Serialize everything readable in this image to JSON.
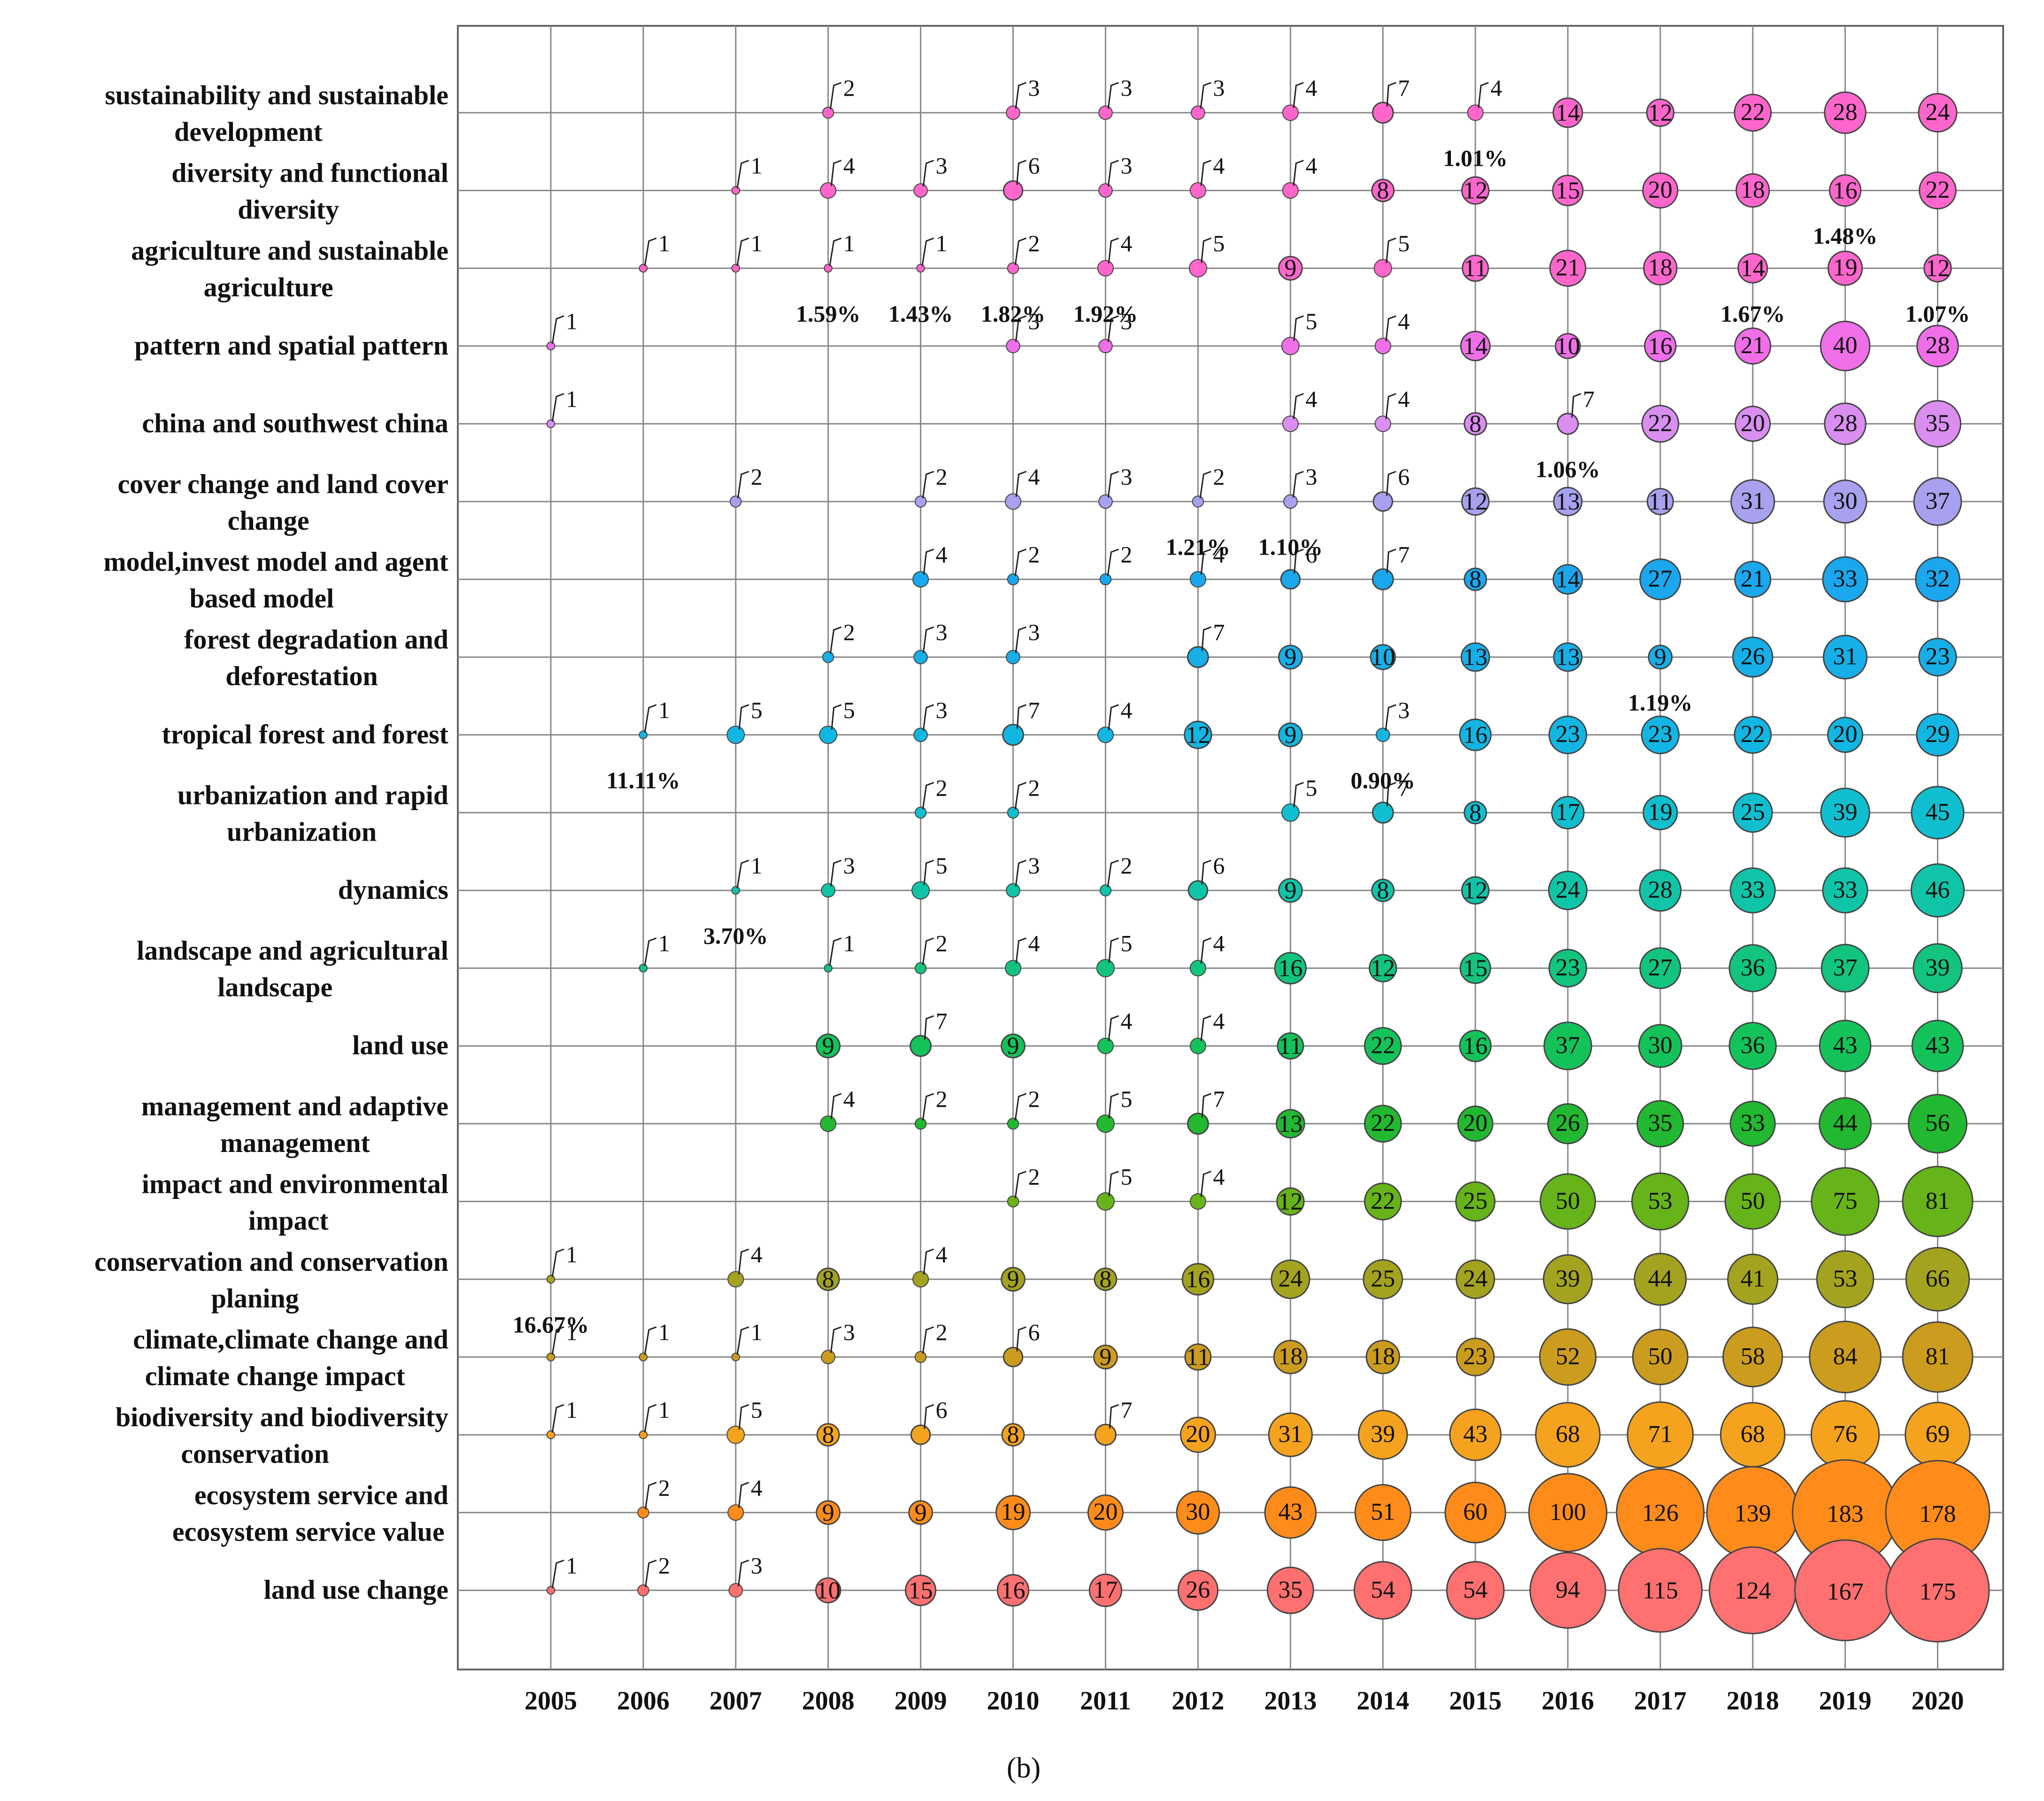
{
  "chart_data": {
    "type": "scatter",
    "subtype": "bubble-matrix",
    "caption": "(b)",
    "years": [
      "2005",
      "2006",
      "2007",
      "2008",
      "2009",
      "2010",
      "2011",
      "2012",
      "2013",
      "2014",
      "2015",
      "2016",
      "2017",
      "2018",
      "2019",
      "2020"
    ],
    "series": [
      {
        "name": "sustainability and sustainable development",
        "color": "#ff66cc",
        "values": [
          null,
          null,
          null,
          2,
          null,
          3,
          3,
          3,
          4,
          7,
          4,
          14,
          12,
          22,
          28,
          24
        ]
      },
      {
        "name": "diversity and functional diversity",
        "color": "#ff66cc",
        "values": [
          null,
          null,
          1,
          4,
          3,
          6,
          3,
          4,
          4,
          8,
          12,
          15,
          20,
          18,
          16,
          22
        ]
      },
      {
        "name": "agriculture and sustainable agriculture",
        "color": "#ff66cc",
        "values": [
          null,
          1,
          1,
          1,
          1,
          2,
          4,
          5,
          9,
          5,
          11,
          21,
          18,
          14,
          19,
          12
        ]
      },
      {
        "name": "pattern and spatial pattern",
        "color": "#f06ee8",
        "values": [
          1,
          null,
          null,
          null,
          null,
          3,
          3,
          null,
          5,
          4,
          14,
          10,
          16,
          21,
          40,
          28
        ]
      },
      {
        "name": "china and southwest china",
        "color": "#d98ef0",
        "values": [
          1,
          null,
          null,
          null,
          null,
          null,
          null,
          null,
          4,
          4,
          8,
          7,
          22,
          20,
          28,
          35
        ]
      },
      {
        "name": "cover change and land cover change",
        "color": "#a7a1f0",
        "values": [
          null,
          null,
          2,
          null,
          2,
          4,
          3,
          2,
          3,
          6,
          12,
          13,
          11,
          31,
          30,
          37
        ]
      },
      {
        "name": "model,invest model and agent based model",
        "color": "#1aa7ee",
        "values": [
          null,
          null,
          null,
          null,
          4,
          2,
          2,
          4,
          6,
          7,
          8,
          14,
          27,
          21,
          33,
          32
        ]
      },
      {
        "name": "forest degradation and deforestation",
        "color": "#18aee8",
        "values": [
          null,
          null,
          null,
          2,
          3,
          3,
          null,
          7,
          9,
          10,
          13,
          13,
          9,
          26,
          31,
          23
        ]
      },
      {
        "name": "tropical forest and forest",
        "color": "#12b6e2",
        "values": [
          null,
          1,
          5,
          5,
          3,
          7,
          4,
          12,
          9,
          3,
          16,
          23,
          23,
          22,
          20,
          29
        ]
      },
      {
        "name": "urbanization and rapid urbanization",
        "color": "#10bfcf",
        "values": [
          null,
          null,
          null,
          null,
          2,
          2,
          null,
          null,
          5,
          7,
          8,
          17,
          19,
          25,
          39,
          45
        ]
      },
      {
        "name": "dynamics",
        "color": "#10c4a8",
        "values": [
          null,
          null,
          1,
          3,
          5,
          3,
          2,
          6,
          9,
          8,
          12,
          24,
          28,
          33,
          33,
          46
        ]
      },
      {
        "name": "landscape and agricultural landscape",
        "color": "#12c47e",
        "values": [
          null,
          1,
          null,
          1,
          2,
          4,
          5,
          4,
          16,
          12,
          15,
          23,
          27,
          36,
          37,
          39
        ]
      },
      {
        "name": "land use",
        "color": "#14c25a",
        "values": [
          null,
          null,
          null,
          9,
          7,
          9,
          4,
          4,
          11,
          22,
          16,
          37,
          30,
          36,
          43,
          43
        ]
      },
      {
        "name": "management and adaptive management",
        "color": "#22b832",
        "values": [
          null,
          null,
          null,
          4,
          2,
          2,
          5,
          7,
          13,
          22,
          20,
          26,
          35,
          33,
          44,
          56
        ]
      },
      {
        "name": "impact and environmental impact",
        "color": "#66b31a",
        "values": [
          null,
          null,
          null,
          null,
          null,
          2,
          5,
          4,
          12,
          22,
          25,
          50,
          53,
          50,
          75,
          81
        ]
      },
      {
        "name": "conservation and conservation planing",
        "color": "#a3a320",
        "values": [
          1,
          null,
          4,
          8,
          4,
          9,
          8,
          16,
          24,
          25,
          24,
          39,
          44,
          41,
          53,
          66
        ]
      },
      {
        "name": "climate,climate change and climate change impact",
        "color": "#cc9c1e",
        "values": [
          1,
          1,
          1,
          3,
          2,
          6,
          9,
          11,
          18,
          18,
          23,
          52,
          50,
          58,
          84,
          81
        ]
      },
      {
        "name": "biodiversity and biodiversity conservation",
        "color": "#f5a31e",
        "values": [
          1,
          1,
          5,
          8,
          6,
          8,
          7,
          20,
          31,
          39,
          43,
          68,
          71,
          68,
          76,
          69
        ]
      },
      {
        "name": "ecosystem service and ecosystem service value",
        "color": "#ff8c1a",
        "values": [
          null,
          2,
          4,
          9,
          9,
          19,
          20,
          30,
          43,
          51,
          60,
          100,
          126,
          139,
          183,
          178
        ]
      },
      {
        "name": "land use change",
        "color": "#ff7070",
        "values": [
          1,
          2,
          3,
          10,
          15,
          16,
          17,
          26,
          35,
          54,
          54,
          94,
          115,
          124,
          167,
          175
        ]
      }
    ],
    "percent_annotations": [
      {
        "text": "1.01%",
        "year": "2015",
        "series": "diversity and functional diversity"
      },
      {
        "text": "1.48%",
        "year": "2019",
        "series": "agriculture and sustainable agriculture"
      },
      {
        "text": "1.59%",
        "year": "2008",
        "series": "pattern and spatial pattern"
      },
      {
        "text": "1.43%",
        "year": "2009",
        "series": "pattern and spatial pattern"
      },
      {
        "text": "1.82%",
        "year": "2010",
        "series": "pattern and spatial pattern"
      },
      {
        "text": "1.92%",
        "year": "2011",
        "series": "pattern and spatial pattern"
      },
      {
        "text": "1.67%",
        "year": "2018",
        "series": "pattern and spatial pattern"
      },
      {
        "text": "1.07%",
        "year": "2020",
        "series": "pattern and spatial pattern"
      },
      {
        "text": "1.06%",
        "year": "2016",
        "series": "cover change and land cover change"
      },
      {
        "text": "1.21%",
        "year": "2012",
        "series": "model,invest model and agent based model"
      },
      {
        "text": "1.10%",
        "year": "2013",
        "series": "model,invest model and agent based model"
      },
      {
        "text": "1.19%",
        "year": "2017",
        "series": "tropical forest and forest"
      },
      {
        "text": "11.11%",
        "year": "2006",
        "series": "urbanization and rapid urbanization"
      },
      {
        "text": "0.90%",
        "year": "2014",
        "series": "urbanization and rapid urbanization"
      },
      {
        "text": "3.70%",
        "year": "2007",
        "series": "landscape and agricultural landscape"
      },
      {
        "text": "16.67%",
        "year": "2005",
        "series": "climate,climate change and climate change impact"
      }
    ],
    "label_lines": [
      [
        "sustainability and sustainable",
        "development"
      ],
      [
        "diversity and functional",
        "diversity"
      ],
      [
        "agriculture and sustainable",
        "agriculture"
      ],
      [
        "pattern and spatial pattern"
      ],
      [
        "china and southwest china"
      ],
      [
        "cover change and land cover",
        "change"
      ],
      [
        "model,invest model and agent",
        "based model"
      ],
      [
        "forest degradation and",
        "deforestation"
      ],
      [
        "tropical forest and forest"
      ],
      [
        "urbanization and rapid",
        "urbanization"
      ],
      [
        "dynamics"
      ],
      [
        "landscape and agricultural",
        "landscape"
      ],
      [
        "land use"
      ],
      [
        "management and adaptive",
        "management"
      ],
      [
        "impact and environmental",
        "impact"
      ],
      [
        "conservation and conservation",
        "planing"
      ],
      [
        "climate,climate change and",
        "climate change impact"
      ],
      [
        "biodiversity and biodiversity",
        "conservation"
      ],
      [
        "ecosystem service and",
        "ecosystem service value"
      ],
      [
        "land use change"
      ]
    ],
    "grid": true
  }
}
